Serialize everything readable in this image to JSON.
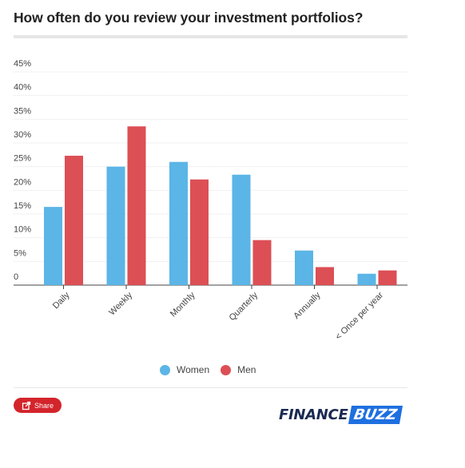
{
  "title": "How often do you review your investment portfolios?",
  "share_label": "Share",
  "logo": {
    "finance": "FINANCE",
    "buzz": "BUZZ"
  },
  "colors": {
    "women": "#5bb5e6",
    "men": "#dc4f55",
    "share": "#d3242b",
    "logo_dark": "#1a2a52",
    "logo_blue": "#1e6fe0"
  },
  "legend": [
    {
      "label": "Women",
      "color": "#5bb5e6"
    },
    {
      "label": "Men",
      "color": "#dc4f55"
    }
  ],
  "chart_data": {
    "type": "bar",
    "title": "How often do you review your investment portfolios?",
    "categories": [
      "Daily",
      "Weekly",
      "Monthly",
      "Quarterly",
      "Annually",
      "< Once per year"
    ],
    "series": [
      {
        "name": "Women",
        "values": [
          16.5,
          25,
          26,
          23.3,
          7.3,
          2.4
        ]
      },
      {
        "name": "Men",
        "values": [
          27.3,
          33.5,
          22.3,
          9.5,
          3.8,
          3.1
        ]
      }
    ],
    "yticks": [
      "45%",
      "40%",
      "35%",
      "30%",
      "25%",
      "20%",
      "15%",
      "10%",
      "5%",
      "0"
    ],
    "ylim": [
      0,
      45
    ],
    "grid": true,
    "legend_position": "bottom"
  }
}
